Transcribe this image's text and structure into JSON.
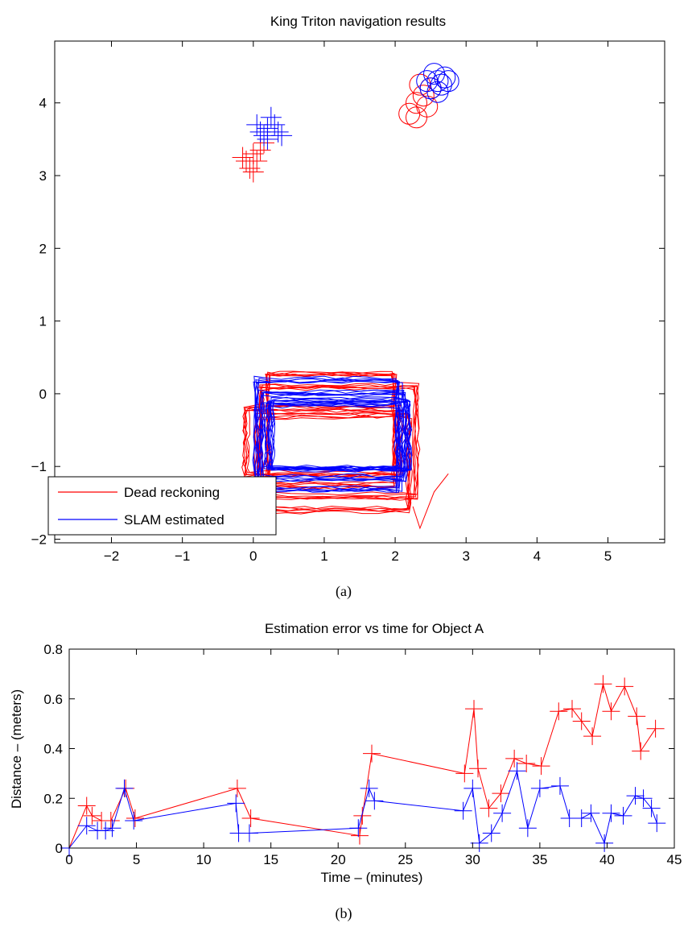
{
  "chart_data": [
    {
      "type": "line",
      "title": "King Triton navigation results",
      "caption": "(a)",
      "xlabel": "",
      "ylabel": "",
      "xlim": [
        -2.8,
        5.8
      ],
      "ylim": [
        -2.05,
        4.85
      ],
      "xticks": [
        -2,
        -1,
        0,
        1,
        2,
        3,
        4,
        5
      ],
      "yticks": [
        -2,
        -1,
        0,
        1,
        2,
        3,
        4
      ],
      "grid": false,
      "legend_position": "bottom-left",
      "series": [
        {
          "name": "Dead reckoning",
          "color": "#ff0000",
          "loops": [
            {
              "x0": -0.1,
              "y0": -1.1,
              "x1": 2.05,
              "y1": -0.2
            },
            {
              "x0": 0.1,
              "y0": -1.4,
              "x1": 2.3,
              "y1": 0.1
            },
            {
              "x0": 0.05,
              "y0": -1.6,
              "x1": 2.2,
              "y1": -0.3
            },
            {
              "x0": 0.2,
              "y0": -1.25,
              "x1": 2.0,
              "y1": 0.25
            }
          ],
          "tail": [
            [
              2.25,
              -1.55
            ],
            [
              2.35,
              -1.85
            ],
            [
              2.55,
              -1.35
            ],
            [
              2.75,
              -1.1
            ]
          ],
          "landmark_crosses": [
            [
              -0.1,
              3.2
            ],
            [
              0.0,
              3.3
            ],
            [
              -0.05,
              3.1
            ],
            [
              0.1,
              3.35
            ],
            [
              -0.15,
              3.25
            ],
            [
              0.05,
              3.2
            ],
            [
              0.0,
              3.05
            ],
            [
              0.15,
              3.45
            ]
          ],
          "landmark_circles": [
            [
              2.2,
              3.85
            ],
            [
              2.3,
              4.0
            ],
            [
              2.4,
              4.1
            ],
            [
              2.35,
              4.25
            ],
            [
              2.5,
              4.2
            ],
            [
              2.3,
              3.8
            ],
            [
              2.45,
              3.95
            ]
          ]
        },
        {
          "name": "SLAM estimated",
          "color": "#0000ff",
          "loops": [
            {
              "x0": 0.2,
              "y0": -1.0,
              "x1": 2.05,
              "y1": -0.15
            },
            {
              "x0": 0.1,
              "y0": -1.15,
              "x1": 2.15,
              "y1": 0.0
            },
            {
              "x0": 0.25,
              "y0": -1.05,
              "x1": 2.2,
              "y1": -0.1
            },
            {
              "x0": 0.05,
              "y0": -1.3,
              "x1": 2.05,
              "y1": 0.2
            }
          ],
          "landmark_crosses": [
            [
              0.2,
              3.65
            ],
            [
              0.1,
              3.6
            ],
            [
              0.3,
              3.7
            ],
            [
              0.15,
              3.55
            ],
            [
              0.25,
              3.8
            ],
            [
              0.35,
              3.6
            ],
            [
              0.2,
              3.5
            ],
            [
              0.05,
              3.7
            ],
            [
              0.4,
              3.55
            ]
          ],
          "landmark_circles": [
            [
              2.6,
              4.3
            ],
            [
              2.5,
              4.2
            ],
            [
              2.7,
              4.35
            ],
            [
              2.55,
              4.4
            ],
            [
              2.65,
              4.25
            ],
            [
              2.45,
              4.3
            ],
            [
              2.6,
              4.15
            ],
            [
              2.75,
              4.3
            ]
          ]
        }
      ]
    },
    {
      "type": "line",
      "title": "Estimation error vs time for Object A",
      "caption": "(b)",
      "xlabel": "Time – (minutes)",
      "ylabel": "Distance – (meters)",
      "xlim": [
        0,
        45
      ],
      "ylim": [
        0,
        0.8
      ],
      "xticks": [
        0,
        5,
        10,
        15,
        20,
        25,
        30,
        35,
        40,
        45
      ],
      "yticks": [
        0,
        0.2,
        0.4,
        0.6,
        0.8
      ],
      "grid": false,
      "series": [
        {
          "name": "",
          "color": "#ff0000",
          "x": [
            0,
            1.3,
            1.7,
            2.4,
            3.1,
            4.2,
            4.9,
            12.5,
            13.5,
            21.6,
            21.8,
            22.5,
            29.4,
            30.1,
            30.4,
            31.2,
            32.1,
            33.1,
            34.0,
            35.1,
            36.4,
            37.4,
            38.1,
            38.9,
            39.7,
            40.3,
            41.3,
            42.2,
            42.5,
            43.6
          ],
          "y": [
            0,
            0.17,
            0.13,
            0.11,
            0.11,
            0.24,
            0.12,
            0.24,
            0.12,
            0.05,
            0.13,
            0.38,
            0.3,
            0.56,
            0.32,
            0.16,
            0.22,
            0.36,
            0.34,
            0.33,
            0.55,
            0.56,
            0.51,
            0.45,
            0.66,
            0.55,
            0.65,
            0.53,
            0.39,
            0.48
          ]
        },
        {
          "name": "",
          "color": "#0000ff",
          "x": [
            0,
            1.3,
            2.1,
            2.7,
            3.2,
            4.1,
            4.8,
            12.4,
            12.6,
            13.4,
            21.5,
            22.3,
            22.7,
            29.3,
            30.0,
            30.5,
            31.4,
            32.2,
            33.3,
            34.1,
            35.0,
            36.5,
            37.2,
            38.1,
            38.8,
            39.8,
            40.3,
            41.2,
            42.1,
            42.7,
            43.3,
            43.7
          ],
          "y": [
            0,
            0.09,
            0.07,
            0.07,
            0.08,
            0.24,
            0.11,
            0.18,
            0.06,
            0.06,
            0.08,
            0.24,
            0.19,
            0.15,
            0.24,
            0.02,
            0.06,
            0.14,
            0.31,
            0.08,
            0.24,
            0.25,
            0.12,
            0.12,
            0.14,
            0.02,
            0.14,
            0.13,
            0.21,
            0.2,
            0.16,
            0.1
          ]
        }
      ]
    }
  ]
}
